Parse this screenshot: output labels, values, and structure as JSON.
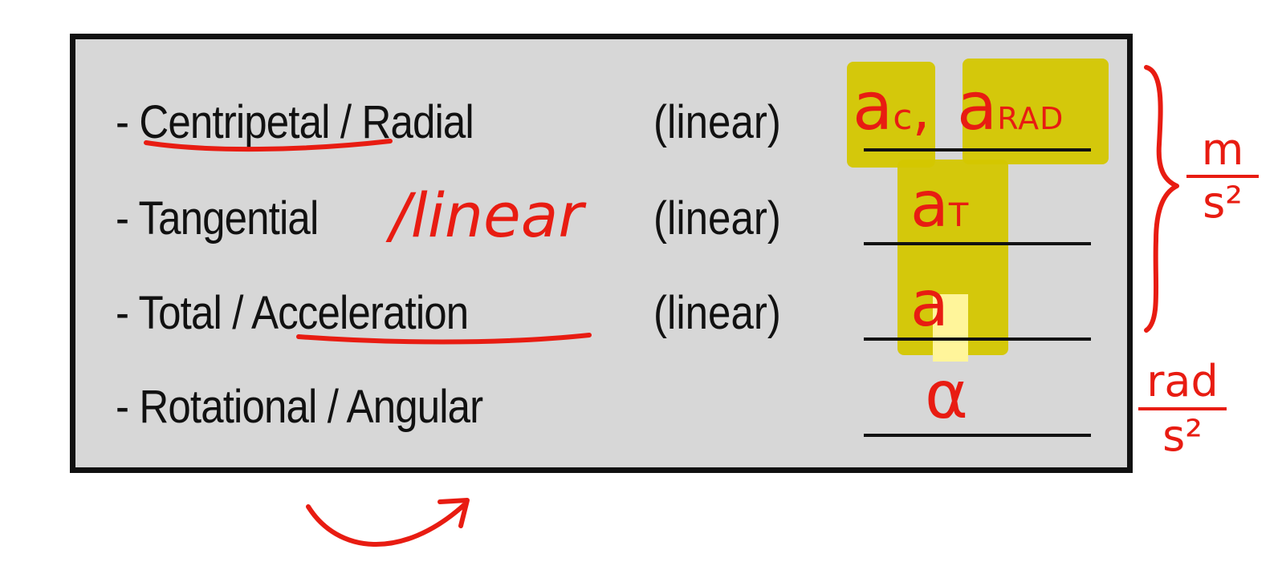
{
  "rows": [
    {
      "bullet": "- ",
      "term": "Centripetal",
      "rest": " / Radial",
      "type": "(linear)"
    },
    {
      "bullet": "- ",
      "term": "Tangential",
      "rest": "",
      "type": "(linear)"
    },
    {
      "bullet": "- ",
      "term": "Total / ",
      "rest": "Acceleration",
      "type": "(linear)"
    },
    {
      "bullet": "- ",
      "term": "Rotational / Angular",
      "rest": "",
      "type": ""
    }
  ],
  "annotations": {
    "linear_note": "/linear",
    "symbol_centripetal_a": "a",
    "symbol_centripetal_sub": "c",
    "comma": ",",
    "symbol_radial_a": "a",
    "symbol_radial_sub": "RAD",
    "symbol_tangential_a": "a",
    "symbol_tangential_sub": "T",
    "symbol_total": "a",
    "symbol_angular": "α",
    "unit_linear_num": "m",
    "unit_linear_den": "s²",
    "unit_angular_num": "rad",
    "unit_angular_den": "s²"
  },
  "colors": {
    "ink": "#e81c12",
    "highlight": "#d4c700",
    "slide_bg": "#d7d7d7"
  }
}
